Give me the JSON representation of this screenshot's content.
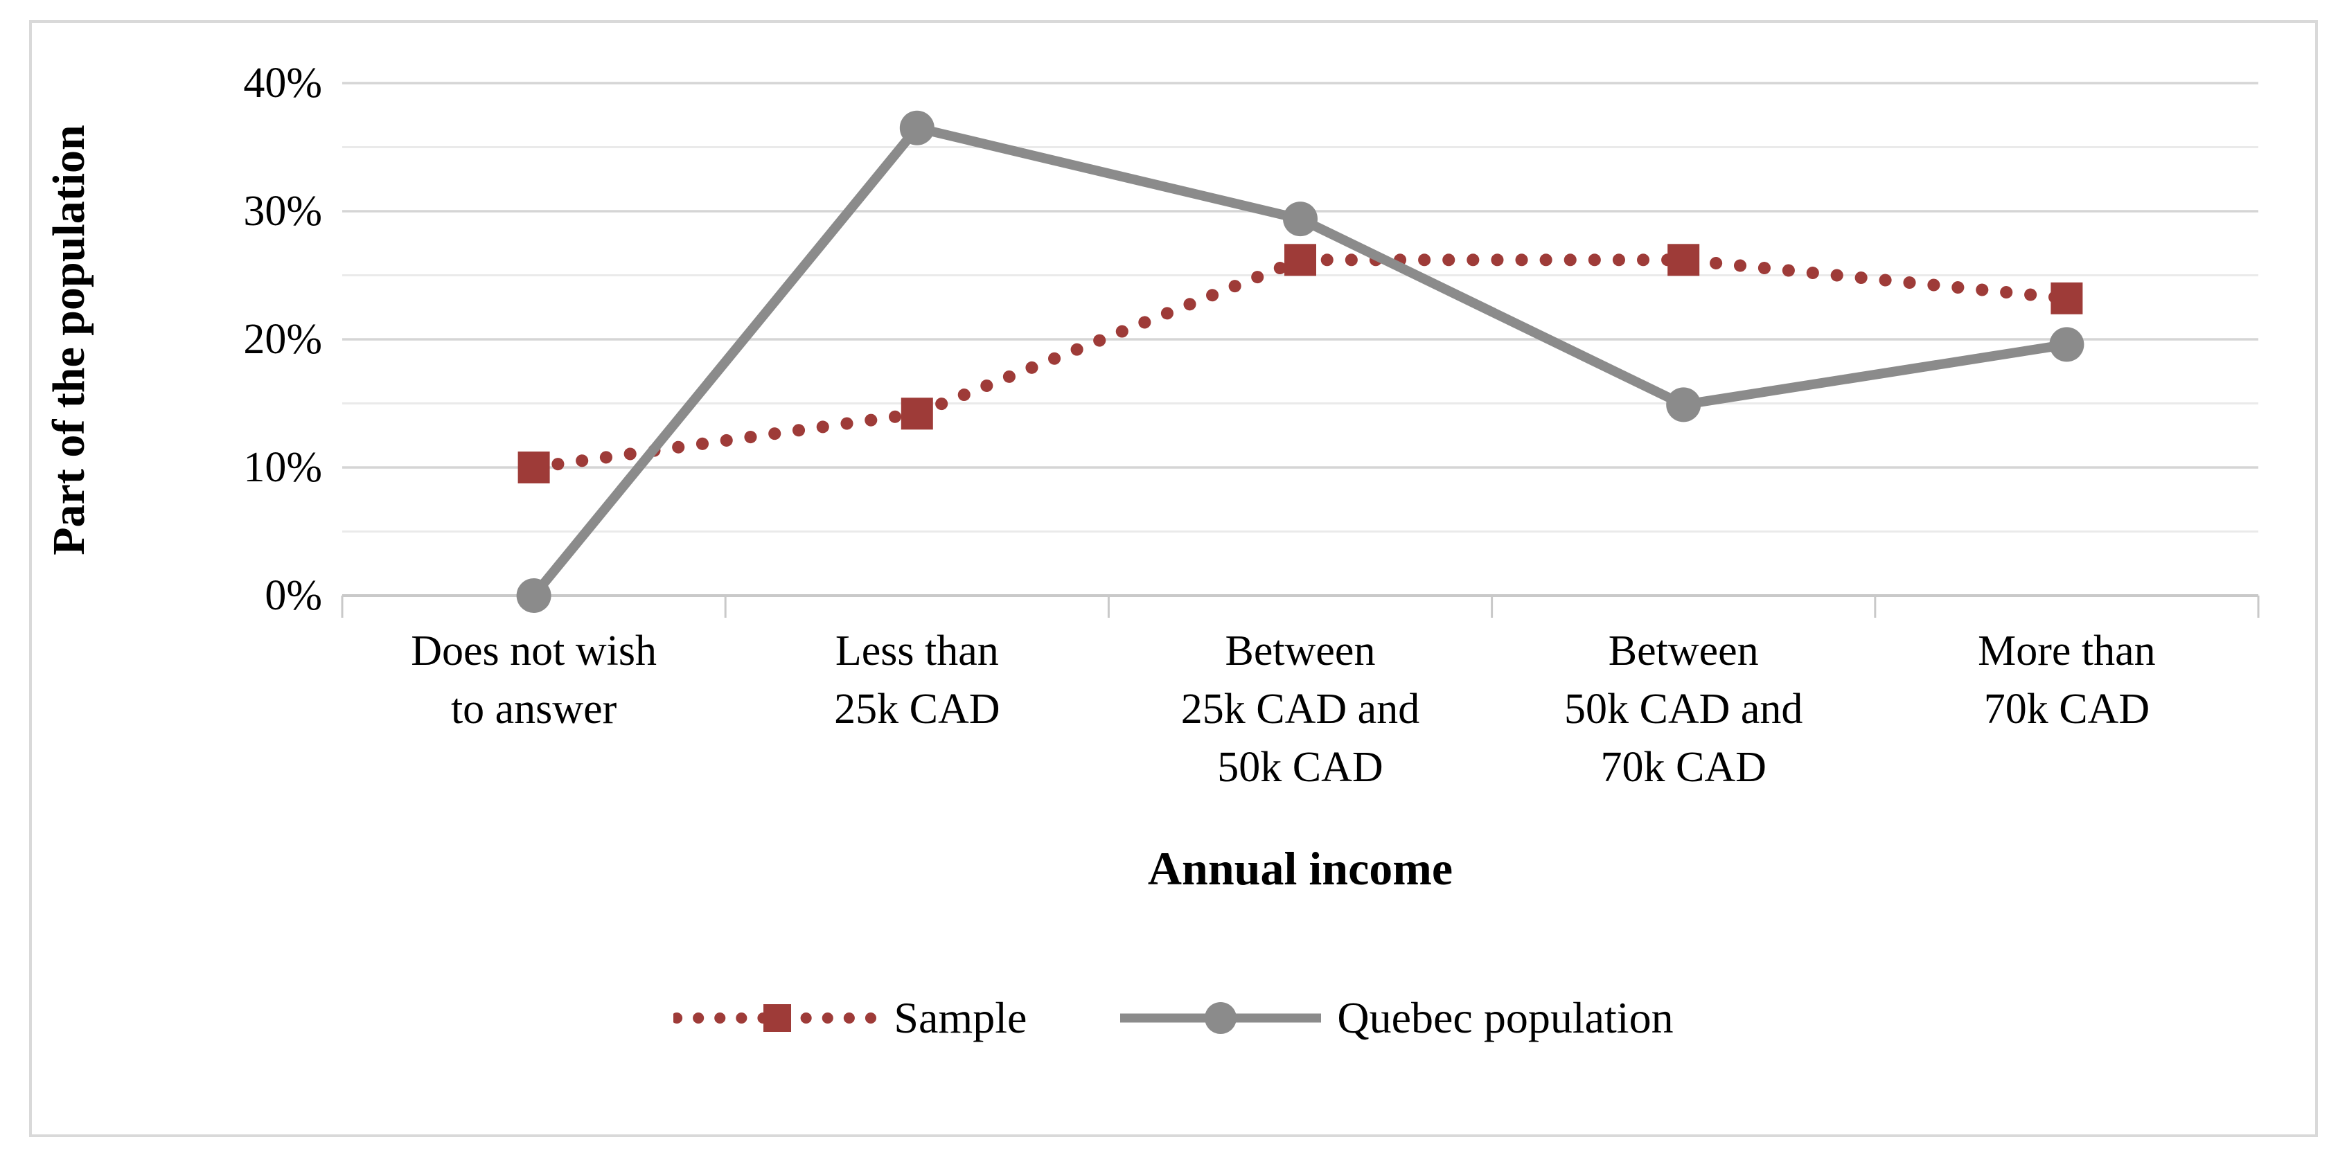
{
  "figure": {
    "y_axis_title": "Part of the population",
    "x_axis_title": "Annual income"
  },
  "legend": {
    "position": "bottom-center",
    "items": [
      {
        "label": "Sample",
        "marker": "red-dotted-line-with-square"
      },
      {
        "label": "Quebec population",
        "marker": "gray-solid-line-with-circle"
      }
    ]
  },
  "colors": {
    "sample_series": "#9E3B38",
    "quebec_series": "#8B8B8B",
    "grid_major": "#D5D5D5",
    "grid_minor": "#EAEAEA",
    "axis_line": "#C9C9C9",
    "figure_border": "#D9D9D9",
    "text": "#000000",
    "background": "#FFFFFF"
  },
  "chart_data": {
    "type": "line",
    "title": "",
    "xlabel": "Annual income",
    "ylabel": "Part of the population",
    "categories": [
      "Does not wish\nto answer",
      "Less than\n25k CAD",
      "Between\n25k CAD and\n50k CAD",
      "Between\n50k CAD and\n70k CAD",
      "More than\n70k CAD"
    ],
    "series": [
      {
        "name": "Sample",
        "values": [
          10,
          14.2,
          26.2,
          26.2,
          23.2
        ],
        "unit": "%",
        "color": "#9E3B38",
        "line_style": "dotted",
        "marker": "square"
      },
      {
        "name": "Quebec population",
        "values": [
          0,
          36.5,
          29.4,
          14.9,
          19.6
        ],
        "unit": "%",
        "color": "#8B8B8B",
        "line_style": "solid",
        "marker": "circle"
      }
    ],
    "ylim": [
      0,
      40
    ],
    "yticks": [
      {
        "value": 0,
        "label": "0%"
      },
      {
        "value": 10,
        "label": "10%"
      },
      {
        "value": 20,
        "label": "20%"
      },
      {
        "value": 30,
        "label": "30%"
      },
      {
        "value": 40,
        "label": "40%"
      }
    ],
    "grid": "horizontal major every 10%, minor every 5%",
    "legend_position": "bottom"
  }
}
